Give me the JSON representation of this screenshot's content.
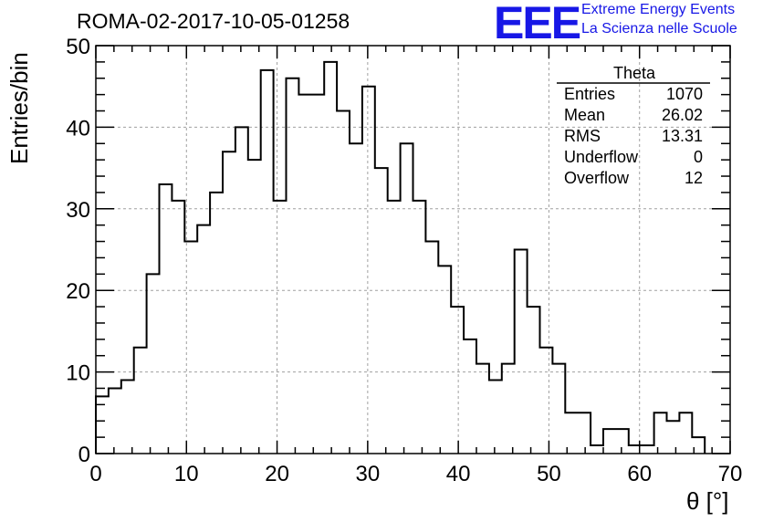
{
  "header": {
    "title": "ROMA-02-2017-10-05-01258",
    "logo_text": "EEE",
    "logo_line1": "Extreme Energy Events",
    "logo_line2": "La Scienza nelle Scuole",
    "accent_color": "#1717e6"
  },
  "stats": {
    "title": "Theta",
    "rows": [
      {
        "label": "Entries",
        "value": "1070"
      },
      {
        "label": "Mean",
        "value": "26.02"
      },
      {
        "label": "RMS",
        "value": "13.31"
      },
      {
        "label": "Underflow",
        "value": "0"
      },
      {
        "label": "Overflow",
        "value": "12"
      }
    ]
  },
  "chart_data": {
    "type": "histogram",
    "title": "ROMA-02-2017-10-05-01258",
    "xlabel": "θ [°]",
    "ylabel": "Entries/bin",
    "xlim": [
      0,
      70
    ],
    "ylim": [
      0,
      50
    ],
    "bin_width": 1.4,
    "bin_start": 0,
    "values": [
      7,
      8,
      9,
      13,
      22,
      33,
      31,
      26,
      28,
      32,
      37,
      40,
      36,
      47,
      31,
      46,
      44,
      44,
      48,
      42,
      38,
      45,
      35,
      31,
      38,
      31,
      26,
      23,
      18,
      14,
      11,
      9,
      11,
      25,
      18,
      13,
      11,
      5,
      5,
      1,
      3,
      3,
      1,
      1,
      5,
      4,
      5,
      2
    ],
    "x_ticks": [
      0,
      10,
      20,
      30,
      40,
      50,
      60,
      70
    ],
    "y_ticks": [
      0,
      10,
      20,
      30,
      40,
      50
    ],
    "x_tick_labels": [
      "0",
      "10",
      "20",
      "30",
      "40",
      "50",
      "60",
      "70"
    ],
    "y_tick_labels": [
      "0",
      "10",
      "20",
      "30",
      "40",
      "50"
    ],
    "grid": true,
    "line_color": "#000000",
    "grid_color": "#a0a0a0"
  }
}
